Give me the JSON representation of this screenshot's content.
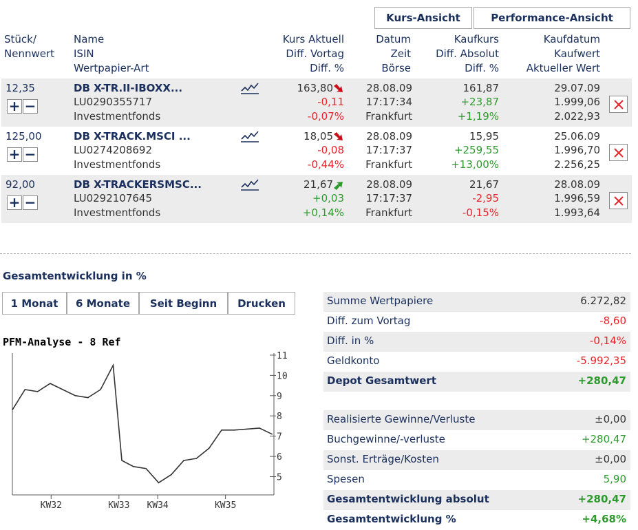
{
  "view_tabs": [
    "Kurs-Ansicht",
    "Performance-Ansicht"
  ],
  "headers": {
    "qty": [
      "Stück/",
      "Nennwert"
    ],
    "name": [
      "Name",
      "ISIN",
      "Wertpapier-Art"
    ],
    "kurs": [
      "Kurs Aktuell",
      "Diff. Vortag",
      "Diff. %"
    ],
    "datum": [
      "Datum",
      "Zeit",
      "Börse"
    ],
    "kaufkurs": [
      "Kaufkurs",
      "Diff. Absolut",
      "Diff. %"
    ],
    "kaufdatum": [
      "Kaufdatum",
      "Kaufwert",
      "Aktueller Wert"
    ]
  },
  "positions": [
    {
      "qty": "12,35",
      "name": "DB X-TR.II-IBOXX...",
      "isin": "LU0290355717",
      "type": "Investmentfonds",
      "kurs": "163,80",
      "trend": "down",
      "diff_vortag": "-0,11",
      "diff_vortag_pct": "-0,07%",
      "datum": "28.08.09",
      "zeit": "17:17:34",
      "boerse": "Frankfurt",
      "kaufkurs": "161,87",
      "diff_abs": "+23,87",
      "diff_pct": "+1,19%",
      "kaufdatum": "29.07.09",
      "kaufwert": "1.999,06",
      "aktueller_wert": "2.022,93"
    },
    {
      "qty": "125,00",
      "name": "DB X-TRACK.MSCI ...",
      "isin": "LU0274208692",
      "type": "Investmentfonds",
      "kurs": "18,05",
      "trend": "down",
      "diff_vortag": "-0,08",
      "diff_vortag_pct": "-0,44%",
      "datum": "28.08.09",
      "zeit": "17:17:37",
      "boerse": "Frankfurt",
      "kaufkurs": "15,95",
      "diff_abs": "+259,55",
      "diff_pct": "+13,00%",
      "kaufdatum": "25.06.09",
      "kaufwert": "1.996,70",
      "aktueller_wert": "2.256,25"
    },
    {
      "qty": "92,00",
      "name": "DB X-TRACKERSMSC...",
      "isin": "LU0292107645",
      "type": "Investmentfonds",
      "kurs": "21,67",
      "trend": "up",
      "diff_vortag": "+0,03",
      "diff_vortag_pct": "+0,14%",
      "datum": "28.08.09",
      "zeit": "17:17:37",
      "boerse": "Frankfurt",
      "kaufkurs": "21,67",
      "diff_abs": "-2,95",
      "diff_pct": "-0,15%",
      "kaufdatum": "28.08.09",
      "kaufwert": "1.996,59",
      "aktueller_wert": "1.993,64"
    }
  ],
  "buttons": {
    "plus": "+",
    "minus": "−"
  },
  "section_title": "Gesamtentwicklung in %",
  "range_tabs": [
    "1 Monat",
    "6 Monate",
    "Seit Beginn",
    "Drucken"
  ],
  "chart_data": {
    "type": "line",
    "title": "PFM-Analyse - 8 Ref",
    "x_tick_labels": [
      "KW32",
      "KW33",
      "KW34",
      "KW35"
    ],
    "y_ticks": [
      5,
      6,
      7,
      8,
      9,
      10,
      11
    ],
    "ylim": [
      4.1,
      11.1
    ],
    "xlim": [
      0,
      27
    ],
    "x_tick_positions": [
      4,
      11,
      15,
      22
    ],
    "series": [
      {
        "x": [
          0,
          1.3,
          2.6,
          3.9,
          5.2,
          6.5,
          7.8,
          9.1,
          10.4,
          11.3,
          12.5,
          13.8,
          15.1,
          16.4,
          17.7,
          19.0,
          20.3,
          21.6,
          22.9,
          24.2,
          25.5,
          26.8
        ],
        "y": [
          8.3,
          9.3,
          9.2,
          9.6,
          9.3,
          9.0,
          8.9,
          9.3,
          10.5,
          5.8,
          5.5,
          5.4,
          4.7,
          5.1,
          5.8,
          5.9,
          6.4,
          7.3,
          7.3,
          7.35,
          7.4,
          7.1
        ]
      }
    ]
  },
  "summary1": [
    {
      "label": "Summe Wertpapiere",
      "value": "6.272,82",
      "tone": "dark",
      "bold": false
    },
    {
      "label": "Diff. zum Vortag",
      "value": "-8,60",
      "tone": "neg",
      "bold": false
    },
    {
      "label": "Diff. in %",
      "value": "-0,14%",
      "tone": "neg",
      "bold": false
    },
    {
      "label": "Geldkonto",
      "value": "-5.992,35",
      "tone": "neg",
      "bold": false
    },
    {
      "label": "Depot Gesamtwert",
      "value": "+280,47",
      "tone": "pos",
      "bold": true
    }
  ],
  "summary2": [
    {
      "label": "Realisierte Gewinne/Verluste",
      "value": "±0,00",
      "tone": "dark",
      "bold": false
    },
    {
      "label": "Buchgewinne/-verluste",
      "value": "+280,47",
      "tone": "pos",
      "bold": false
    },
    {
      "label": "Sonst. Erträge/Kosten",
      "value": "±0,00",
      "tone": "dark",
      "bold": false
    },
    {
      "label": "Spesen",
      "value": "5,90",
      "tone": "pos",
      "bold": false
    },
    {
      "label": "Gesamtentwicklung absolut",
      "value": "+280,47",
      "tone": "pos",
      "bold": true
    },
    {
      "label": "Gesamtentwicklung %",
      "value": "+4,68%",
      "tone": "pos",
      "bold": true
    }
  ]
}
